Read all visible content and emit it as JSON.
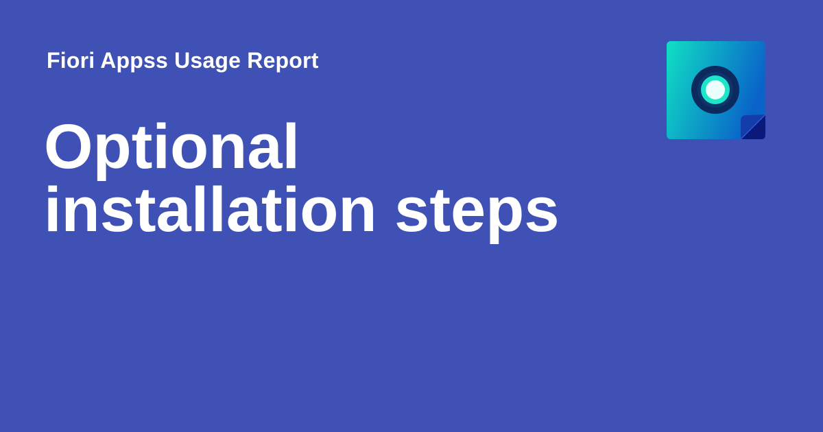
{
  "header": {
    "site_name": "Fiori Appss Usage Report"
  },
  "main": {
    "title_lines": [
      "Optional",
      "installation steps"
    ]
  },
  "logo": {
    "icon": "app-logo-icon",
    "colors": {
      "background": "#3f51b5",
      "gradient_start": "#10e0c6",
      "gradient_end": "#0a63c8",
      "ring": "#0b2a5e",
      "dot": "#2ee6c4",
      "corner_fold": "#0a1a7a"
    }
  }
}
